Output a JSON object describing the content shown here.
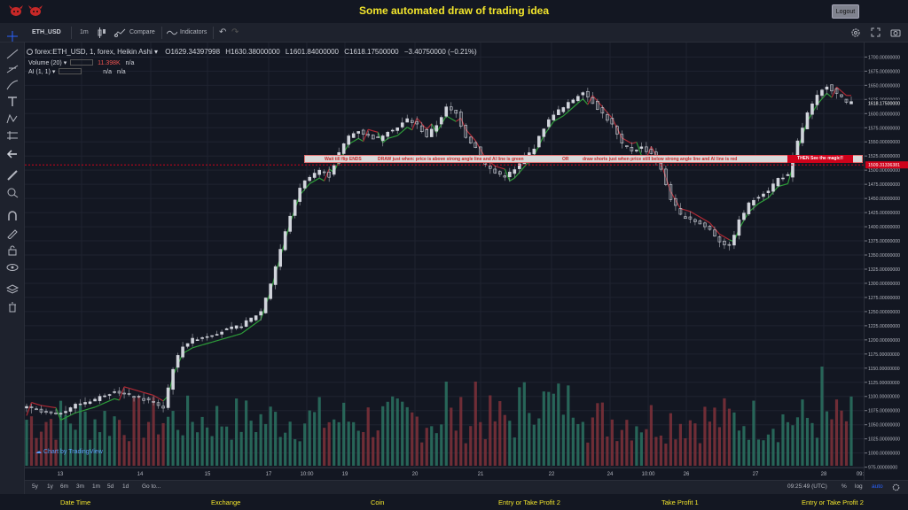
{
  "header": {
    "title": "Some automated draw of trading idea",
    "logout_label": "Logout"
  },
  "toolbar": {
    "symbol": "ETH_USD",
    "interval": "1m",
    "compare_label": "Compare",
    "indicators_label": "Indicators"
  },
  "legend": {
    "main": "forex:ETH_USD, 1, forex, Heikin Ashi",
    "open": "O1629.34397998",
    "high": "H1630.38000000",
    "low": "L1601.84000000",
    "close": "C1618.17500000",
    "change": "−3.40750000 (−0.21%)",
    "volume_label": "Volume (20)",
    "volume_value": "11.398K",
    "volume_na": "n/a",
    "ai_label": "AI (1, 1)",
    "ai_value1": "n/a",
    "ai_value2": "n/a"
  },
  "watermark": "Chart by TradingView",
  "annotation": {
    "seg1": "Wait till flip ENDS",
    "seg2": "DRAW just when:  price is above strong angle line and AI line is green",
    "seg3": "OR",
    "seg4": "draw shorts just when price still below strong angle line and AI line is red",
    "seg5": "THEN See the magic!!"
  },
  "price_labels": {
    "current": "1618.17500000",
    "line": "1509.31336381"
  },
  "bottombar": {
    "ranges": [
      "5y",
      "1y",
      "6m",
      "3m",
      "1m",
      "5d",
      "1d"
    ],
    "goto": "Go to...",
    "clock": "09:25:49 (UTC)",
    "percent": "%",
    "log": "log",
    "auto": "auto"
  },
  "footer": {
    "items": [
      "Date Time",
      "Exchange",
      "Coin",
      "Entry or Take Profit 2",
      "Take Profit 1",
      "Entry or Take Profit 2"
    ]
  },
  "chart_data": {
    "type": "candlestick",
    "y_ticks": [
      "1700.00000000",
      "1675.00000000",
      "1650.00000000",
      "1625.00000000",
      "1600.00000000",
      "1575.00000000",
      "1550.00000000",
      "1525.00000000",
      "1500.00000000",
      "1475.00000000",
      "1450.00000000",
      "1425.00000000",
      "1400.00000000",
      "1375.00000000",
      "1350.00000000",
      "1325.00000000",
      "1300.00000000",
      "1275.00000000",
      "1250.00000000",
      "1225.00000000",
      "1200.00000000",
      "1175.00000000",
      "1150.00000000",
      "1125.00000000",
      "1100.00000000",
      "1075.00000000",
      "1050.00000000",
      "1025.00000000",
      "1000.00000000",
      "975.00000000"
    ],
    "ylim": [
      965,
      1710
    ],
    "x_ticks": [
      "13",
      "14",
      "15",
      "17",
      "10:00",
      "19",
      "20",
      "21",
      "22",
      "24",
      "10:00",
      "26",
      "27",
      "28",
      "09:"
    ],
    "price_path": [
      [
        0,
        1080
      ],
      [
        3,
        1072
      ],
      [
        6,
        1068
      ],
      [
        10,
        1085
      ],
      [
        14,
        1095
      ],
      [
        18,
        1110
      ],
      [
        22,
        1100
      ],
      [
        26,
        1090
      ],
      [
        28,
        1080
      ],
      [
        30,
        1150
      ],
      [
        32,
        1190
      ],
      [
        34,
        1200
      ],
      [
        36,
        1205
      ],
      [
        40,
        1215
      ],
      [
        44,
        1225
      ],
      [
        48,
        1250
      ],
      [
        50,
        1300
      ],
      [
        52,
        1360
      ],
      [
        54,
        1420
      ],
      [
        56,
        1470
      ],
      [
        58,
        1490
      ],
      [
        60,
        1500
      ],
      [
        62,
        1490
      ],
      [
        64,
        1530
      ],
      [
        66,
        1560
      ],
      [
        68,
        1570
      ],
      [
        70,
        1560
      ],
      [
        72,
        1555
      ],
      [
        74,
        1570
      ],
      [
        76,
        1575
      ],
      [
        78,
        1590
      ],
      [
        80,
        1580
      ],
      [
        82,
        1560
      ],
      [
        84,
        1580
      ],
      [
        86,
        1610
      ],
      [
        88,
        1600
      ],
      [
        90,
        1560
      ],
      [
        92,
        1540
      ],
      [
        94,
        1510
      ],
      [
        96,
        1495
      ],
      [
        98,
        1490
      ],
      [
        100,
        1500
      ],
      [
        102,
        1520
      ],
      [
        104,
        1540
      ],
      [
        106,
        1575
      ],
      [
        108,
        1600
      ],
      [
        110,
        1610
      ],
      [
        112,
        1625
      ],
      [
        114,
        1640
      ],
      [
        116,
        1620
      ],
      [
        118,
        1600
      ],
      [
        120,
        1580
      ],
      [
        122,
        1545
      ],
      [
        124,
        1535
      ],
      [
        126,
        1540
      ],
      [
        128,
        1530
      ],
      [
        130,
        1500
      ],
      [
        132,
        1450
      ],
      [
        134,
        1420
      ],
      [
        136,
        1415
      ],
      [
        138,
        1405
      ],
      [
        140,
        1395
      ],
      [
        142,
        1375
      ],
      [
        144,
        1365
      ],
      [
        146,
        1410
      ],
      [
        148,
        1440
      ],
      [
        150,
        1455
      ],
      [
        152,
        1465
      ],
      [
        154,
        1485
      ],
      [
        156,
        1490
      ],
      [
        158,
        1550
      ],
      [
        160,
        1600
      ],
      [
        162,
        1630
      ],
      [
        164,
        1650
      ],
      [
        166,
        1635
      ],
      [
        168,
        1620
      ]
    ],
    "volume_ylim": [
      0,
      5
    ],
    "ai_line_color_up": "#2e9e3a",
    "ai_line_color_down": "#b02a35",
    "candle_up_color": "#d1d4dc",
    "candle_down_color": "#787b86"
  },
  "colors": {
    "accent": "#f2e52c",
    "annotation_red": "#d0021b",
    "volume_up": "#26a69a",
    "volume_down": "#ef5350"
  }
}
